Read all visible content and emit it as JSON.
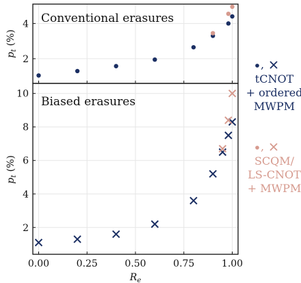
{
  "colors": {
    "navy": "#1b2f63",
    "pink": "#d69a8e",
    "grid": "#e6e6e6",
    "axis": "#111111"
  },
  "chart_data": [
    {
      "type": "scatter",
      "title": "Conventional erasures",
      "ylabel": "p_t (%)",
      "ylabel_main": "p",
      "ylabel_sub": "t",
      "ylabel_rest": " (%)",
      "xlim": [
        -0.03,
        1.03
      ],
      "ylim": [
        0.6,
        5.1
      ],
      "yticks": [
        2,
        4
      ],
      "ytick_labels": [
        "2",
        "4"
      ],
      "series": [
        {
          "marker": "dot",
          "color": "navy",
          "x": [
            0.0,
            0.2,
            0.4,
            0.6,
            0.8,
            0.9,
            0.98,
            1.0
          ],
          "y": [
            1.05,
            1.3,
            1.58,
            1.95,
            2.65,
            3.3,
            4.0,
            4.4
          ]
        },
        {
          "marker": "dot",
          "color": "pink",
          "x": [
            0.9,
            0.98,
            1.0
          ],
          "y": [
            3.45,
            4.55,
            4.95
          ]
        }
      ]
    },
    {
      "type": "scatter",
      "title": "Biased erasures",
      "ylabel": "p_t (%)",
      "ylabel_main": "p",
      "ylabel_sub": "t",
      "ylabel_rest": " (%)",
      "xlabel": "R_e",
      "xlabel_main": "R",
      "xlabel_sub": "e",
      "xlim": [
        -0.03,
        1.03
      ],
      "ylim": [
        0.4,
        10.6
      ],
      "yticks": [
        2,
        4,
        6,
        8,
        10
      ],
      "ytick_labels": [
        "2",
        "4",
        "6",
        "8",
        "10"
      ],
      "xticks": [
        0.0,
        0.25,
        0.5,
        0.75,
        1.0
      ],
      "xtick_labels": [
        "0.00",
        "0.25",
        "0.50",
        "0.75",
        "1.00"
      ],
      "series": [
        {
          "marker": "cross",
          "color": "navy",
          "x": [
            0.0,
            0.2,
            0.4,
            0.6,
            0.8,
            0.9,
            0.95,
            0.98,
            1.0
          ],
          "y": [
            1.1,
            1.3,
            1.6,
            2.2,
            3.6,
            5.2,
            6.5,
            7.5,
            8.3
          ]
        },
        {
          "marker": "cross",
          "color": "pink",
          "x": [
            0.95,
            0.98,
            1.0
          ],
          "y": [
            6.7,
            8.4,
            10.0
          ]
        }
      ]
    }
  ],
  "legend": {
    "tcnot_sep": ",",
    "tcnot_lines": [
      "tCNOT",
      "+ ordered",
      "MWPM"
    ],
    "scqm_sep": ",",
    "scqm_lines": [
      "SCQM/",
      "LS-CNOT",
      "+ MWPM"
    ]
  }
}
